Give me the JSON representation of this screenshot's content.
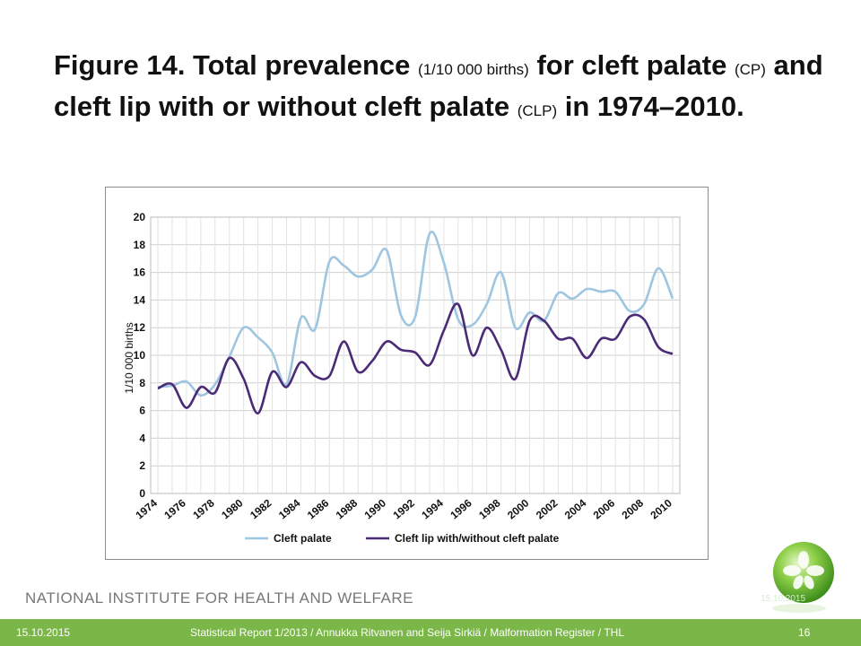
{
  "slide": {
    "title_part1": "Figure 14. Total prevalence",
    "title_small1": "(1/10 000 births)",
    "title_part2": "for cleft palate",
    "title_small2": "(CP)",
    "title_part3": "and cleft lip with or without cleft palate",
    "title_small3": "(CLP)",
    "title_part4": "in 1974–2010.",
    "institute": "NATIONAL INSTITUTE FOR HEALTH AND WELFARE",
    "footer_date": "15.10.2015",
    "footer_source": "Statistical Report 1/2013 / Annukka Ritvanen and Seija Sirkiä / Malformation Register / THL",
    "page_number": "16",
    "logo_date": "15.10.2015"
  },
  "chart_data": {
    "type": "line",
    "title": "",
    "xlabel": "",
    "ylabel": "1/10 000 births",
    "ylim": [
      0,
      20
    ],
    "yticks": [
      0,
      2,
      4,
      6,
      8,
      10,
      12,
      14,
      16,
      18,
      20
    ],
    "xticks": [
      "1974",
      "1976",
      "1978",
      "1980",
      "1982",
      "1984",
      "1986",
      "1988",
      "1990",
      "1992",
      "1994",
      "1996",
      "1998",
      "2000",
      "2002",
      "2004",
      "2006",
      "2008",
      "2010"
    ],
    "x": [
      1974,
      1975,
      1976,
      1977,
      1978,
      1979,
      1980,
      1981,
      1982,
      1983,
      1984,
      1985,
      1986,
      1987,
      1988,
      1989,
      1990,
      1991,
      1992,
      1993,
      1994,
      1995,
      1996,
      1997,
      1998,
      1999,
      2000,
      2001,
      2002,
      2003,
      2004,
      2005,
      2006,
      2007,
      2008,
      2009,
      2010
    ],
    "grid": true,
    "legend": "bottom",
    "series": [
      {
        "name": "Cleft palate",
        "color": "#9ec6e0",
        "values": [
          7.7,
          7.8,
          8.1,
          7.1,
          7.9,
          9.9,
          12.0,
          11.3,
          10.2,
          7.9,
          12.7,
          11.9,
          16.8,
          16.5,
          15.7,
          16.2,
          17.6,
          12.9,
          12.8,
          18.8,
          16.7,
          12.6,
          12.2,
          13.7,
          16.0,
          12.0,
          13.1,
          12.5,
          14.5,
          14.1,
          14.8,
          14.6,
          14.6,
          13.2,
          13.7,
          16.3,
          14.1
        ]
      },
      {
        "name": "Cleft lip with/without cleft palate",
        "color": "#4b2a77",
        "values": [
          7.6,
          7.9,
          6.2,
          7.7,
          7.3,
          9.8,
          8.3,
          5.8,
          8.8,
          7.7,
          9.5,
          8.5,
          8.5,
          11.0,
          8.8,
          9.6,
          11.0,
          10.4,
          10.2,
          9.3,
          11.8,
          13.7,
          10.0,
          12.0,
          10.4,
          8.3,
          12.5,
          12.5,
          11.2,
          11.2,
          9.8,
          11.2,
          11.2,
          12.8,
          12.6,
          10.6,
          10.1
        ]
      }
    ]
  }
}
